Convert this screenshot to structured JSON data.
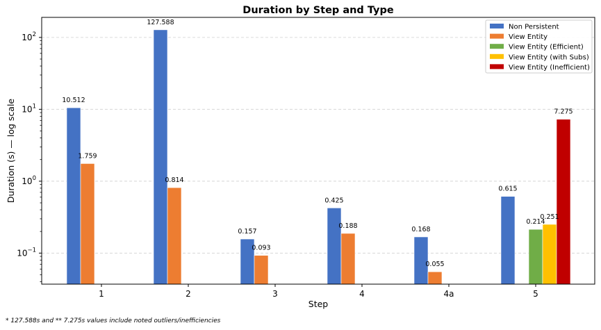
{
  "chart_data": {
    "type": "bar",
    "title": "Duration by Step and Type",
    "xlabel": "Step",
    "ylabel": "Duration (s) — log scale",
    "yscale": "log",
    "ylim": [
      0.037,
      190
    ],
    "yticks": [
      {
        "value": 0.1,
        "base": "10",
        "exp": "−1"
      },
      {
        "value": 1,
        "base": "10",
        "exp": "0"
      },
      {
        "value": 10,
        "base": "10",
        "exp": "1"
      },
      {
        "value": 100,
        "base": "10",
        "exp": "2"
      }
    ],
    "grid": true,
    "legend_position": "top-right",
    "categories": [
      "1",
      "2",
      "3",
      "4",
      "4a",
      "5"
    ],
    "series": [
      {
        "name": "Non Persistent",
        "color": "#4472C4",
        "values": [
          10.512,
          127.588,
          0.157,
          0.425,
          0.168,
          0.615
        ],
        "labels": [
          "10.512",
          "127.588",
          "0.157",
          "0.425",
          "0.168",
          "0.615"
        ]
      },
      {
        "name": "View Entity",
        "color": "#ED7D31",
        "values": [
          1.759,
          0.814,
          0.093,
          0.188,
          0.055,
          null
        ],
        "labels": [
          "1.759",
          "0.814",
          "0.093",
          "0.188",
          "0.055",
          null
        ]
      },
      {
        "name": "View Entity (Efficient)",
        "color": "#70AD47",
        "values": [
          null,
          null,
          null,
          null,
          null,
          0.214
        ],
        "labels": [
          null,
          null,
          null,
          null,
          null,
          "0.214"
        ]
      },
      {
        "name": "View Entity (with Subs)",
        "color": "#FFC000",
        "values": [
          null,
          null,
          null,
          null,
          null,
          0.251
        ],
        "labels": [
          null,
          null,
          null,
          null,
          null,
          "0.251"
        ]
      },
      {
        "name": "View Entity (Inefficient)",
        "color": "#C00000",
        "values": [
          null,
          null,
          null,
          null,
          null,
          7.275
        ],
        "labels": [
          null,
          null,
          null,
          null,
          null,
          "7.275"
        ]
      }
    ]
  },
  "footnote": "* 127.588s and ** 7.275s values include noted outliers/inefficiencies"
}
